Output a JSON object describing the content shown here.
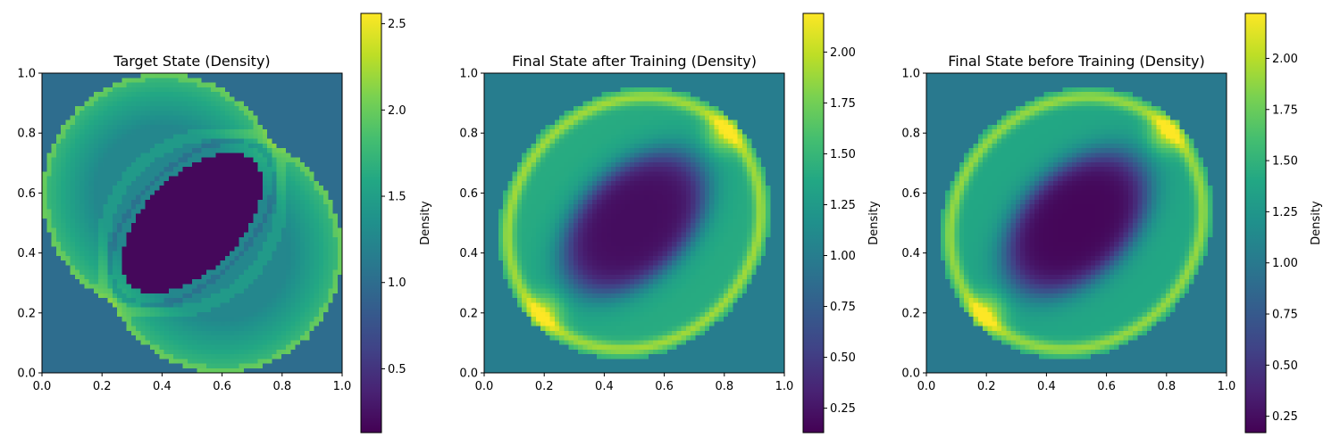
{
  "colormap": "viridis",
  "chart_data": [
    {
      "type": "heatmap",
      "field": "target",
      "title": "Target State (Density)",
      "xlim": [
        0,
        1
      ],
      "ylim": [
        0,
        1
      ],
      "x_ticks": [
        "0.0",
        "0.2",
        "0.4",
        "0.6",
        "0.8",
        "1.0"
      ],
      "y_ticks": [
        "0.0",
        "0.2",
        "0.4",
        "0.6",
        "0.8",
        "1.0"
      ],
      "colorbar": {
        "label": "Density",
        "vmin": 0.13,
        "vmax": 2.56,
        "ticks": [
          "0.5",
          "1.0",
          "1.5",
          "2.0",
          "2.5"
        ],
        "tick_values": [
          0.5,
          1.0,
          1.5,
          2.0,
          2.5
        ]
      }
    },
    {
      "type": "heatmap",
      "field": "after",
      "title": "Final State after Training (Density)",
      "xlim": [
        0,
        1
      ],
      "ylim": [
        0,
        1
      ],
      "x_ticks": [
        "0.0",
        "0.2",
        "0.4",
        "0.6",
        "0.8",
        "1.0"
      ],
      "y_ticks": [
        "0.0",
        "0.2",
        "0.4",
        "0.6",
        "0.8",
        "1.0"
      ],
      "colorbar": {
        "label": "Density",
        "vmin": 0.13,
        "vmax": 2.19,
        "ticks": [
          "0.25",
          "0.50",
          "0.75",
          "1.00",
          "1.25",
          "1.50",
          "1.75",
          "2.00"
        ],
        "tick_values": [
          0.25,
          0.5,
          0.75,
          1.0,
          1.25,
          1.5,
          1.75,
          2.0
        ]
      }
    },
    {
      "type": "heatmap",
      "field": "before",
      "title": "Final State before Training (Density)",
      "xlim": [
        0,
        1
      ],
      "ylim": [
        0,
        1
      ],
      "x_ticks": [
        "0.0",
        "0.2",
        "0.4",
        "0.6",
        "0.8",
        "1.0"
      ],
      "y_ticks": [
        "0.0",
        "0.2",
        "0.4",
        "0.6",
        "0.8",
        "1.0"
      ],
      "colorbar": {
        "label": "Density",
        "vmin": 0.17,
        "vmax": 2.22,
        "ticks": [
          "0.25",
          "0.50",
          "0.75",
          "1.00",
          "1.25",
          "1.50",
          "1.75",
          "2.00"
        ],
        "tick_values": [
          0.25,
          0.5,
          0.75,
          1.0,
          1.25,
          1.5,
          1.75,
          2.0
        ]
      }
    }
  ]
}
